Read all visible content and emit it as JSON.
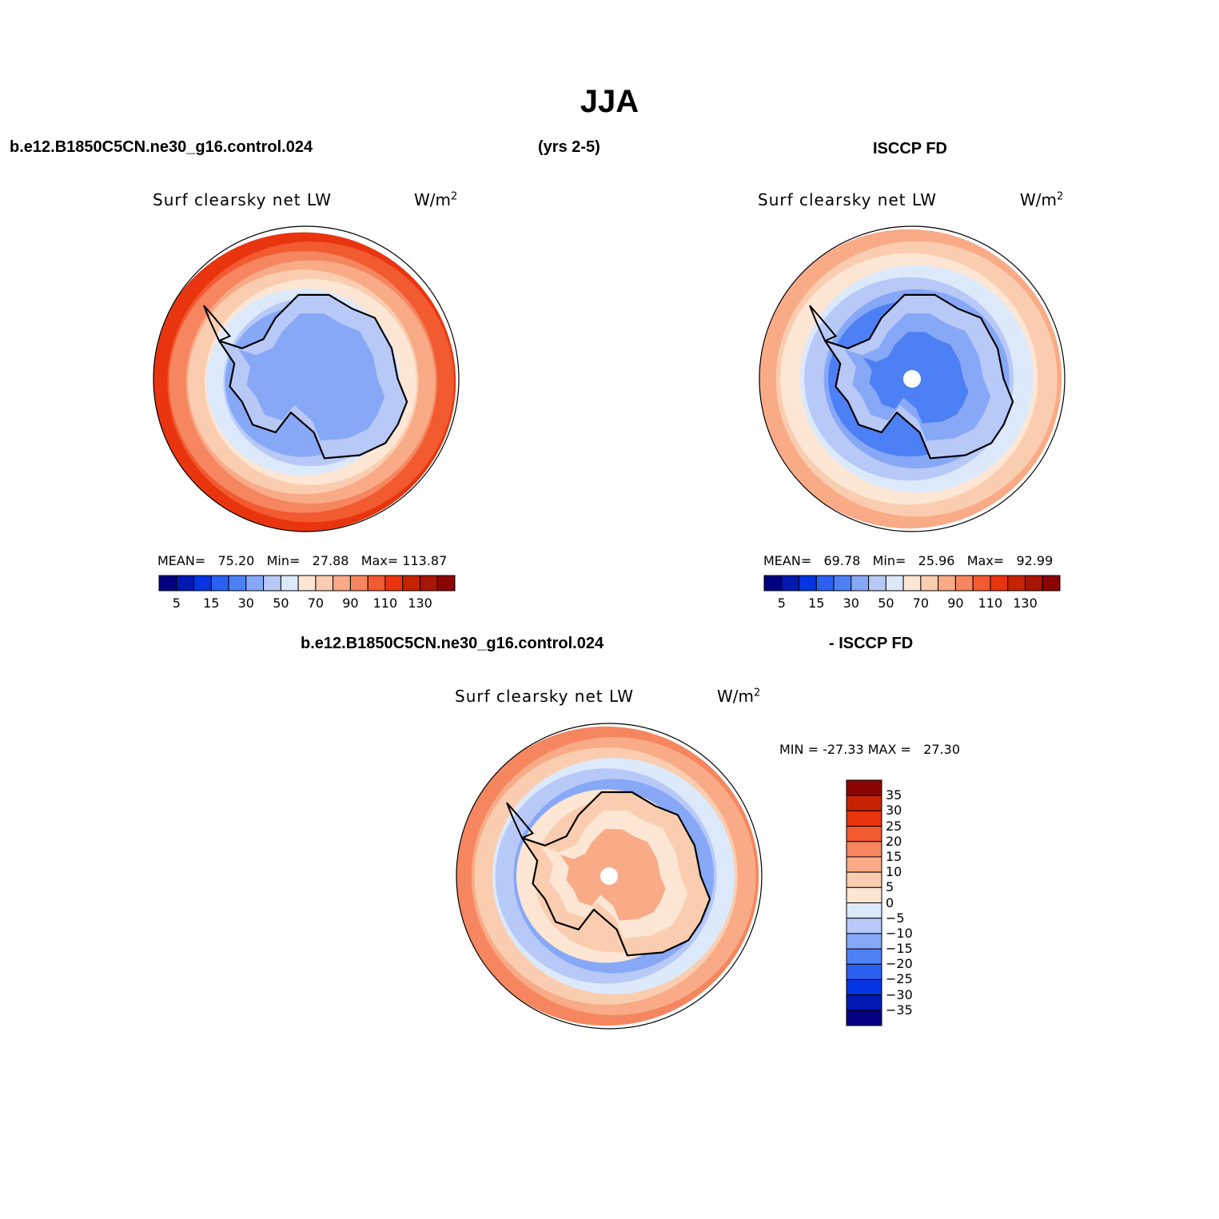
{
  "figure": {
    "title": "JJA",
    "case_name": "b.e12.B1850C5CN.ne30_g16.control.024",
    "years": "(yrs 2-5)",
    "obs_name": "ISCCP FD",
    "diff_case_name": "b.e12.B1850C5CN.ne30_g16.control.024",
    "diff_obs_name": "- ISCCP FD"
  },
  "palette": {
    "abs": [
      "#000080",
      "#0019b0",
      "#0535e0",
      "#2a5ff0",
      "#4d80f5",
      "#87a8f7",
      "#b8c9f8",
      "#dce9fb",
      "#fde6d4",
      "#fbcdb0",
      "#f8ab86",
      "#f58660",
      "#f25a30",
      "#e8350f",
      "#c62305",
      "#a81505",
      "#8c0505"
    ],
    "diff": [
      "#000080",
      "#0019b0",
      "#0535e0",
      "#2a5ff0",
      "#4d80f5",
      "#87a8f7",
      "#b8c9f8",
      "#dce9fb",
      "#fde6d4",
      "#fbcdb0",
      "#f8ab86",
      "#f58660",
      "#f25a30",
      "#e8350f",
      "#c62305",
      "#8c0505"
    ],
    "land_outline": "#000000"
  },
  "chart_data": [
    {
      "type": "heatmap",
      "projection": "south-polar-stereographic",
      "title": "Surf clearsky net LW",
      "units": "W/m",
      "units_exp": "2",
      "mean_label": "MEAN=",
      "mean": "75.20",
      "min_label": "Min=",
      "min": "27.88",
      "max_label": "Max=",
      "max": "113.87",
      "levels": [
        5,
        10,
        15,
        20,
        30,
        40,
        50,
        60,
        70,
        80,
        90,
        100,
        110,
        120,
        130,
        140
      ],
      "colorbar_labels": [
        "5",
        "15",
        "30",
        "50",
        "70",
        "90",
        "110",
        "130"
      ],
      "rings": [
        {
          "level_index": 13,
          "value": 120
        },
        {
          "level_index": 12,
          "value": 110
        },
        {
          "level_index": 11,
          "value": 100
        },
        {
          "level_index": 10,
          "value": 90
        },
        {
          "level_index": 9,
          "value": 80
        },
        {
          "level_index": 8,
          "value": 70
        },
        {
          "level_index": 7,
          "value": 60
        },
        {
          "level_index": 6,
          "value": 50
        },
        {
          "level_index": 5,
          "value": 40
        }
      ]
    },
    {
      "type": "heatmap",
      "projection": "south-polar-stereographic",
      "title": "Surf clearsky net LW",
      "units": "W/m",
      "units_exp": "2",
      "mean_label": "MEAN=",
      "mean": "69.78",
      "min_label": "Min=",
      "min": "25.96",
      "max_label": "Max=",
      "max": "92.99",
      "levels": [
        5,
        10,
        15,
        20,
        30,
        40,
        50,
        60,
        70,
        80,
        90,
        100,
        110,
        120,
        130,
        140
      ],
      "colorbar_labels": [
        "5",
        "15",
        "30",
        "50",
        "70",
        "90",
        "110",
        "130"
      ],
      "rings": [
        {
          "level_index": 10,
          "value": 90
        },
        {
          "level_index": 9,
          "value": 80
        },
        {
          "level_index": 8,
          "value": 70
        },
        {
          "level_index": 7,
          "value": 60
        },
        {
          "level_index": 6,
          "value": 50
        },
        {
          "level_index": 5,
          "value": 40
        },
        {
          "level_index": 4,
          "value": 30
        }
      ]
    },
    {
      "type": "heatmap",
      "projection": "south-polar-stereographic",
      "title": "Surf clearsky net LW",
      "units": "W/m",
      "units_exp": "2",
      "min_label": "MIN =",
      "min": "-27.33",
      "max_label": "MAX =",
      "max": "27.30",
      "levels": [
        -35,
        -30,
        -25,
        -20,
        -15,
        -10,
        -5,
        0,
        5,
        10,
        15,
        20,
        25,
        30,
        35
      ],
      "colorbar_labels": [
        "35",
        "30",
        "25",
        "20",
        "15",
        "10",
        "5",
        "0",
        "−5",
        "−10",
        "−15",
        "−20",
        "−25",
        "−30",
        "−35"
      ],
      "rings": [
        {
          "level_index": 11,
          "value": 20
        },
        {
          "level_index": 10,
          "value": 15
        },
        {
          "level_index": 9,
          "value": 10
        },
        {
          "level_index": 7,
          "value": 0
        },
        {
          "level_index": 6,
          "value": -5
        },
        {
          "level_index": 5,
          "value": -10
        },
        {
          "level_index": 8,
          "value": 5
        },
        {
          "level_index": 9,
          "value": 10
        }
      ]
    }
  ]
}
